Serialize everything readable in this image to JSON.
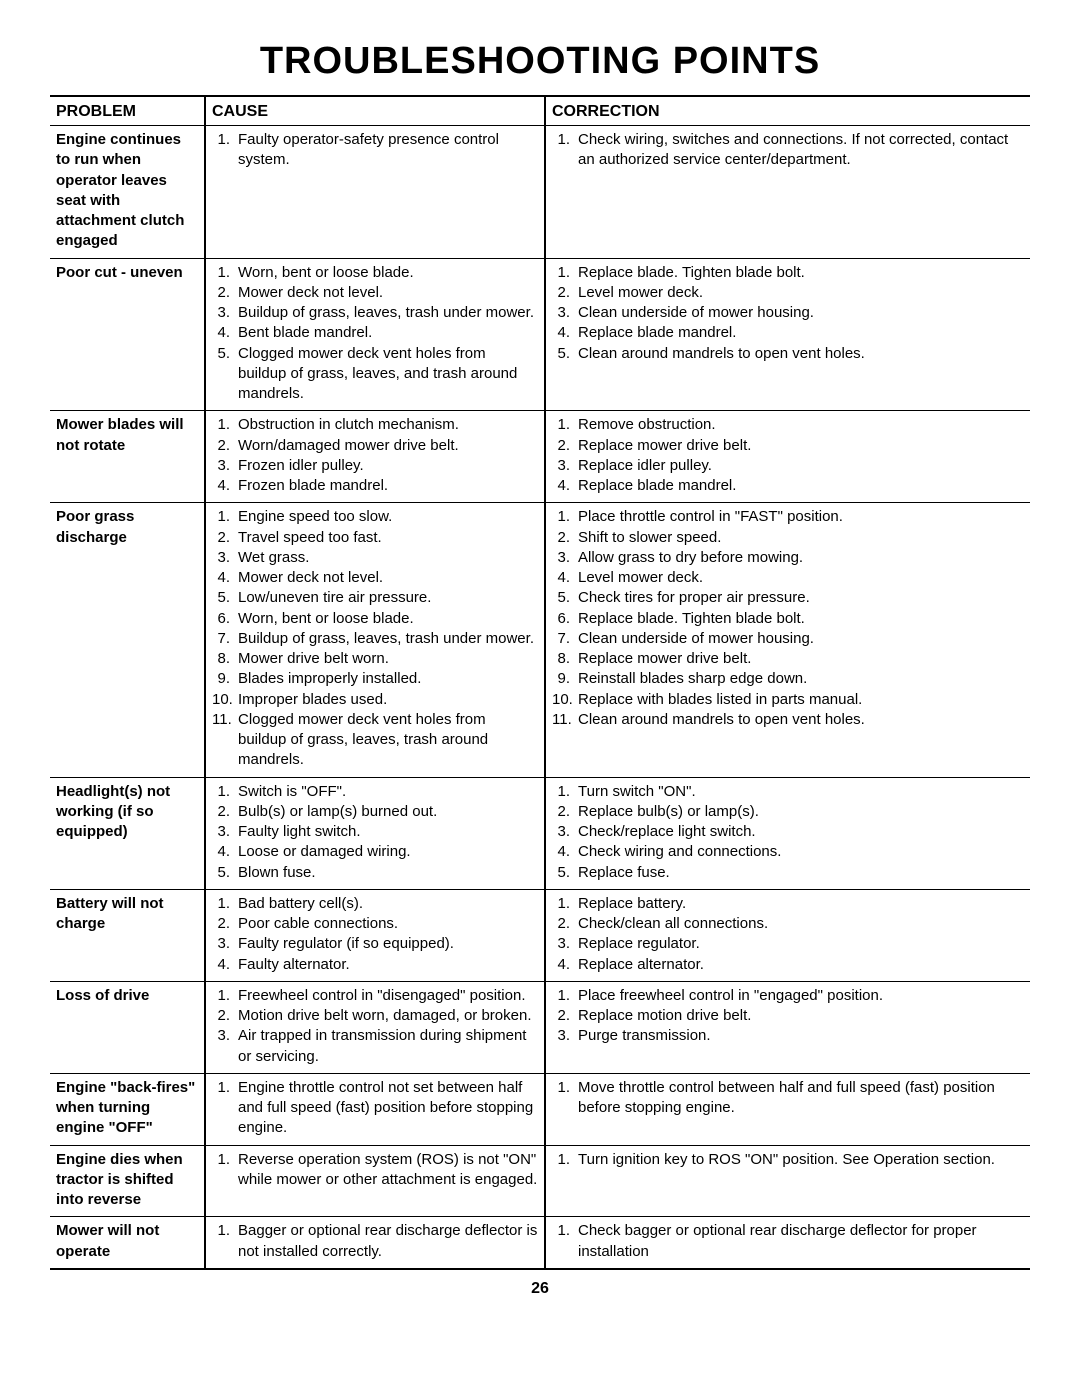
{
  "title": "TROUBLESHOOTING POINTS",
  "page_number": "26",
  "headers": {
    "problem": "PROBLEM",
    "cause": "CAUSE",
    "correction": "CORRECTION"
  },
  "rows": [
    {
      "problem": "Engine continues to run when operator leaves seat with attachment clutch engaged",
      "causes": [
        "Faulty operator-safety presence control system."
      ],
      "corrections": [
        "Check wiring, switches  and connections.  If not corrected, contact an authorized service center/department."
      ]
    },
    {
      "problem": "Poor cut - uneven",
      "causes": [
        "Worn, bent or loose blade.",
        "Mower deck not level.",
        "Buildup of grass, leaves, trash under mower.",
        "Bent blade mandrel.",
        "Clogged mower deck vent holes from buildup of grass, leaves, and trash around mandrels."
      ],
      "corrections": [
        "Replace blade.  Tighten blade bolt.",
        "Level mower deck.",
        "Clean underside of mower housing.",
        "Replace blade mandrel.",
        "Clean around mandrels to open vent holes."
      ]
    },
    {
      "problem": "Mower blades will not rotate",
      "causes": [
        "Obstruction in clutch mechanism.",
        "Worn/damaged mower drive belt.",
        "Frozen idler pulley.",
        "Frozen blade mandrel."
      ],
      "corrections": [
        "Remove obstruction.",
        "Replace mower drive belt.",
        "Replace idler pulley.",
        "Replace blade mandrel."
      ]
    },
    {
      "problem": "Poor grass discharge",
      "causes": [
        "Engine speed too slow.",
        "Travel speed too fast.",
        "Wet grass.",
        "Mower deck not level.",
        "Low/uneven tire air pressure.",
        "Worn, bent or loose blade.",
        "Buildup of grass, leaves, trash under mower.",
        "Mower drive belt worn.",
        "Blades improperly installed.",
        "Improper blades used.",
        "Clogged mower deck vent holes from buildup of grass, leaves, trash around mandrels."
      ],
      "corrections": [
        "Place throttle control in \"FAST\" position.",
        "Shift to slower speed.",
        "Allow grass to dry before mowing.",
        "Level mower deck.",
        "Check tires for proper air pressure.",
        "Replace blade.  Tighten blade bolt.",
        "Clean underside of mower housing.",
        "Replace mower drive belt.",
        "Reinstall blades sharp edge down.",
        "Replace with blades listed in parts manual.",
        "Clean around mandrels to open vent holes."
      ]
    },
    {
      "problem": "Headlight(s) not working\n(if so equipped)",
      "causes": [
        "Switch is \"OFF\".",
        "Bulb(s) or lamp(s) burned out.",
        "Faulty light switch.",
        "Loose or damaged wiring.",
        "Blown fuse."
      ],
      "corrections": [
        "Turn switch \"ON\".",
        "Replace bulb(s) or lamp(s).",
        "Check/replace light switch.",
        "Check wiring and connections.",
        "Replace fuse."
      ]
    },
    {
      "problem": "Battery will not charge",
      "causes": [
        "Bad battery cell(s).",
        "Poor cable connections.",
        "Faulty regulator (if so equipped).",
        "Faulty alternator."
      ],
      "corrections": [
        "Replace battery.",
        "Check/clean all connections.",
        "Replace regulator.",
        "Replace alternator."
      ]
    },
    {
      "problem": "Loss of drive",
      "causes": [
        "Freewheel control in \"disengaged\" position.",
        "Motion drive belt worn, damaged, or broken.",
        "Air trapped in transmission during shipment or servicing."
      ],
      "corrections": [
        "Place freewheel control in \"engaged\" position.",
        "Replace motion drive belt.",
        "Purge transmission."
      ]
    },
    {
      "problem": "Engine \"back-fires\" when turning engine \"OFF\"",
      "causes": [
        "Engine throttle control not set between half and full speed (fast) position before stopping engine."
      ],
      "corrections": [
        "Move throttle control between half and full speed (fast) position before stopping engine."
      ]
    },
    {
      "problem": "Engine dies when tractor is shifted into reverse",
      "causes": [
        "Reverse operation system (ROS) is not \"ON\" while mower or other attachment is engaged."
      ],
      "corrections": [
        "Turn ignition key to ROS \"ON\" position. See Operation section."
      ]
    },
    {
      "problem": "Mower will not operate",
      "causes": [
        "Bagger or optional rear discharge deflector is not installed correctly."
      ],
      "corrections": [
        "Check bagger or optional rear discharge deflector for proper installation"
      ]
    }
  ]
}
